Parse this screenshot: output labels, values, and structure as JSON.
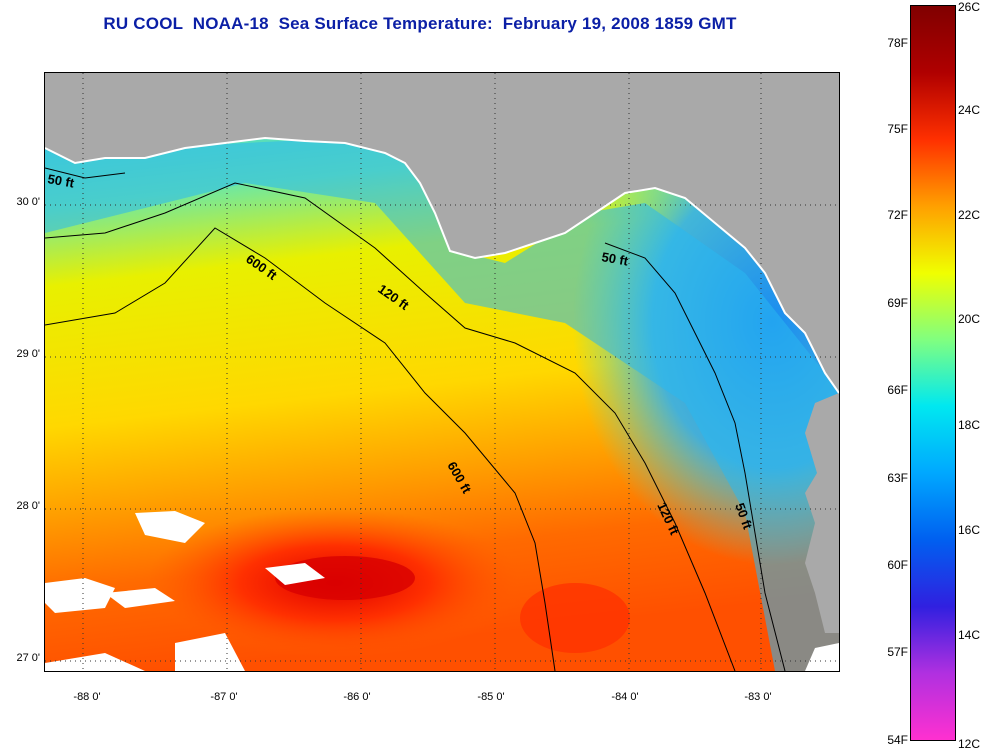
{
  "title": "RU COOL  NOAA-18  Sea Surface Temperature:  February 19, 2008 1859 GMT",
  "lat_labels": [
    "30 0'",
    "29 0'",
    "28 0'",
    "27 0'"
  ],
  "lon_labels": [
    "-88 0'",
    "-87 0'",
    "-86 0'",
    "-85 0'",
    "-84 0'",
    "-83 0'"
  ],
  "isobath_labels": {
    "fifty_west": "50 ft",
    "six_hundred_north": "600 ft",
    "one_twenty_north": "120 ft",
    "fifty_east_north": "50 ft",
    "six_hundred_south": "600 ft",
    "one_twenty_south": "120 ft",
    "fifty_east_south": "50 ft"
  },
  "colorbar": {
    "f_labels": [
      "78F",
      "75F",
      "72F",
      "69F",
      "66F",
      "63F",
      "60F",
      "57F",
      "54F"
    ],
    "c_labels": [
      "26C",
      "24C",
      "22C",
      "20C",
      "18C",
      "16C",
      "14C",
      "12C"
    ],
    "colors": [
      "#ff30d0",
      "#b030e0",
      "#3020e0",
      "#0060f0",
      "#00a8ff",
      "#00e8f0",
      "#80ff80",
      "#f0ff00",
      "#ffa000",
      "#ff3000",
      "#b00000",
      "#800000"
    ]
  },
  "colors": {
    "land": "#a9a9a9",
    "title": "#0b1fa6"
  }
}
